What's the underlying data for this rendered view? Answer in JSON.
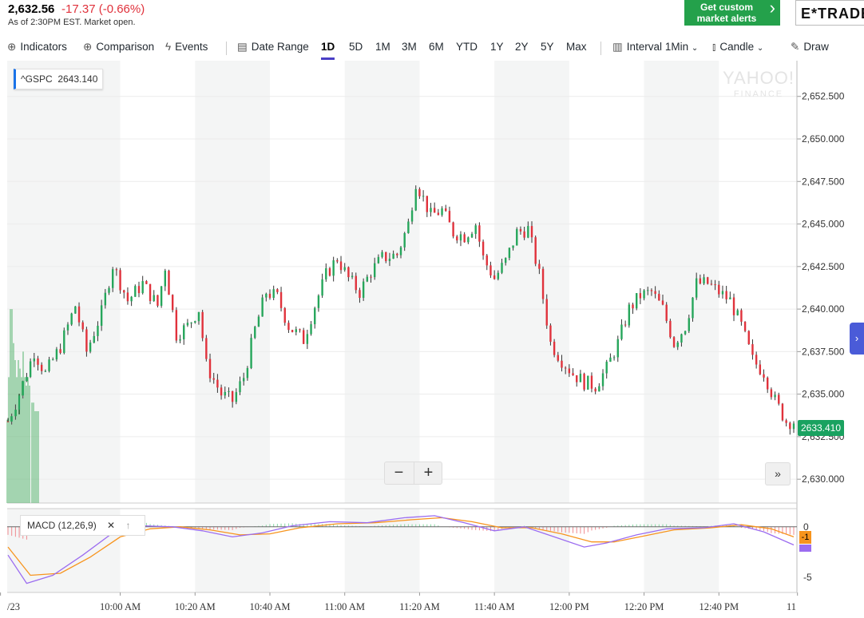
{
  "quote": {
    "price": "2,632.56",
    "change": "-17.37 (-0.66%)",
    "as_of": "As of 2:30PM EST. Market open."
  },
  "alerts": {
    "line1": "Get custom",
    "line2": "market alerts"
  },
  "brand": "E*TRADE",
  "toolbar": {
    "indicators": "Indicators",
    "comparison": "Comparison",
    "events": "Events",
    "date_range": "Date Range",
    "ranges": [
      "1D",
      "5D",
      "1M",
      "3M",
      "6M",
      "YTD",
      "1Y",
      "2Y",
      "5Y",
      "Max"
    ],
    "active_range": "1D",
    "interval": "Interval",
    "interval_value": "1Min",
    "candle": "Candle",
    "draw": "Draw"
  },
  "legend": {
    "symbol": "^GSPC",
    "value": "2643.140"
  },
  "last_price_tag": "2633.410",
  "macd": {
    "label": "MACD (12,26,9)",
    "tag": "-1"
  },
  "watermark": {
    "line1": "YAHOO!",
    "line2": "FINANCE"
  },
  "colors": {
    "up": "#26a65b",
    "down": "#e0323c",
    "macd": "#9b6cf0",
    "signal": "#f7941d",
    "accent": "#4a3fc6",
    "shade": "#f4f5f5"
  },
  "chart_data": {
    "type": "candlestick",
    "y_ticks": [
      "2,652.500",
      "2,650.000",
      "2,647.500",
      "2,645.000",
      "2,642.500",
      "2,640.000",
      "2,637.500",
      "2,635.000",
      "2,632.500",
      "2,630.000"
    ],
    "ylim": [
      2628.6,
      2654.6
    ],
    "x_ticks": [
      "/23",
      "10:00 AM",
      "10:20 AM",
      "10:40 AM",
      "11:00 AM",
      "11:20 AM",
      "11:40 AM",
      "12:00 PM",
      "12:20 PM",
      "12:40 PM",
      "11"
    ],
    "x_tick_minutes": [
      -2,
      30,
      50,
      70,
      90,
      110,
      130,
      150,
      170,
      190,
      211
    ],
    "x_range_minutes": [
      0,
      210
    ],
    "close_path": [
      [
        0,
        2633.4
      ],
      [
        3,
        2635.0
      ],
      [
        7,
        2637.5
      ],
      [
        10,
        2636.2
      ],
      [
        14,
        2637.8
      ],
      [
        18,
        2640.2
      ],
      [
        21,
        2637.5
      ],
      [
        25,
        2639.8
      ],
      [
        28,
        2642.6
      ],
      [
        32,
        2640.5
      ],
      [
        36,
        2641.5
      ],
      [
        40,
        2640.2
      ],
      [
        42,
        2642.5
      ],
      [
        45,
        2638.5
      ],
      [
        48,
        2639.0
      ],
      [
        51,
        2640.0
      ],
      [
        53,
        2636.7
      ],
      [
        57,
        2635.0
      ],
      [
        60,
        2634.6
      ],
      [
        63,
        2636.0
      ],
      [
        66,
        2638.8
      ],
      [
        69,
        2641.0
      ],
      [
        72,
        2640.7
      ],
      [
        75,
        2639.0
      ],
      [
        79,
        2638.2
      ],
      [
        82,
        2640.2
      ],
      [
        85,
        2642.0
      ],
      [
        88,
        2643.0
      ],
      [
        91,
        2641.8
      ],
      [
        94,
        2641.0
      ],
      [
        97,
        2642.2
      ],
      [
        100,
        2643.0
      ],
      [
        104,
        2643.2
      ],
      [
        107,
        2645.0
      ],
      [
        109,
        2647.5
      ],
      [
        111,
        2646.5
      ],
      [
        113,
        2645.5
      ],
      [
        116,
        2645.8
      ],
      [
        119,
        2644.5
      ],
      [
        122,
        2644.3
      ],
      [
        125,
        2645.0
      ],
      [
        127,
        2643.0
      ],
      [
        130,
        2641.8
      ],
      [
        133,
        2642.8
      ],
      [
        136,
        2644.5
      ],
      [
        139,
        2644.7
      ],
      [
        142,
        2642.0
      ],
      [
        145,
        2638.0
      ],
      [
        148,
        2637.0
      ],
      [
        151,
        2636.2
      ],
      [
        154,
        2635.7
      ],
      [
        157,
        2635.5
      ],
      [
        160,
        2636.5
      ],
      [
        163,
        2638.0
      ],
      [
        166,
        2640.0
      ],
      [
        169,
        2640.8
      ],
      [
        172,
        2641.0
      ],
      [
        175,
        2640.0
      ],
      [
        178,
        2638.0
      ],
      [
        181,
        2639.0
      ],
      [
        184,
        2641.5
      ],
      [
        187,
        2641.5
      ],
      [
        190,
        2641.0
      ],
      [
        193,
        2640.5
      ],
      [
        196,
        2639.0
      ],
      [
        199,
        2637.0
      ],
      [
        202,
        2636.3
      ],
      [
        205,
        2634.6
      ],
      [
        208,
        2633.4
      ]
    ],
    "macd_ticks": [
      "0",
      "-5"
    ],
    "macd_ylim": [
      -6.5,
      1.8
    ],
    "macd_line": [
      [
        0,
        -2.8
      ],
      [
        5,
        -5.6
      ],
      [
        12,
        -4.8
      ],
      [
        20,
        -2.8
      ],
      [
        28,
        -0.6
      ],
      [
        36,
        0.1
      ],
      [
        44,
        0.0
      ],
      [
        52,
        -0.4
      ],
      [
        60,
        -1.0
      ],
      [
        68,
        -0.6
      ],
      [
        76,
        0.1
      ],
      [
        86,
        0.5
      ],
      [
        96,
        0.4
      ],
      [
        106,
        0.9
      ],
      [
        114,
        1.1
      ],
      [
        122,
        0.4
      ],
      [
        130,
        -0.4
      ],
      [
        138,
        0.0
      ],
      [
        146,
        -1.0
      ],
      [
        154,
        -2.0
      ],
      [
        160,
        -1.6
      ],
      [
        168,
        -0.8
      ],
      [
        176,
        -0.2
      ],
      [
        186,
        -0.1
      ],
      [
        194,
        0.3
      ],
      [
        202,
        -0.5
      ],
      [
        210,
        -1.8
      ]
    ],
    "signal_line": [
      [
        0,
        -2.0
      ],
      [
        6,
        -4.8
      ],
      [
        14,
        -4.6
      ],
      [
        22,
        -3.0
      ],
      [
        30,
        -1.0
      ],
      [
        38,
        -0.2
      ],
      [
        46,
        0.0
      ],
      [
        54,
        -0.3
      ],
      [
        62,
        -0.8
      ],
      [
        70,
        -0.7
      ],
      [
        78,
        -0.1
      ],
      [
        88,
        0.3
      ],
      [
        98,
        0.4
      ],
      [
        108,
        0.7
      ],
      [
        116,
        0.9
      ],
      [
        124,
        0.5
      ],
      [
        132,
        -0.1
      ],
      [
        140,
        -0.1
      ],
      [
        148,
        -0.7
      ],
      [
        156,
        -1.5
      ],
      [
        162,
        -1.5
      ],
      [
        170,
        -0.9
      ],
      [
        178,
        -0.3
      ],
      [
        188,
        -0.1
      ],
      [
        196,
        0.2
      ],
      [
        204,
        -0.2
      ],
      [
        210,
        -1.0
      ]
    ]
  }
}
